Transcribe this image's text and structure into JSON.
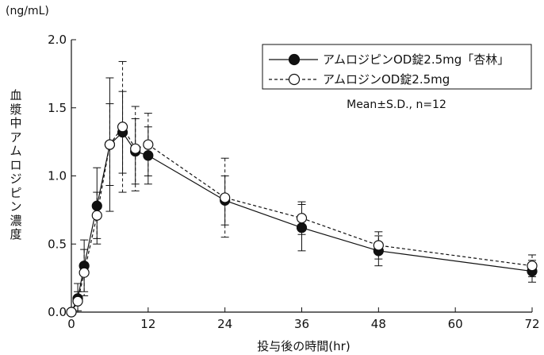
{
  "chart_data": {
    "type": "line",
    "unit_label": "(ng/mL)",
    "ylabel": "血漿中アムロジピン濃度",
    "xlabel": "投与後の時間(hr)",
    "ylim": [
      0,
      2.0
    ],
    "xlim": [
      0,
      72
    ],
    "y_ticks": [
      "0.0",
      "0.5",
      "1.0",
      "1.5",
      "2.0"
    ],
    "x_ticks": [
      "0",
      "12",
      "24",
      "36",
      "48",
      "60",
      "72"
    ],
    "legend_position": "top-right",
    "annotation": "Mean±S.D., n=12",
    "series": [
      {
        "name": "アムロジピンOD錠2.5mg「杏林」",
        "marker": "filled-circle",
        "line": "solid",
        "color": "#111111",
        "x": [
          0,
          1,
          2,
          4,
          6,
          8,
          10,
          12,
          24,
          36,
          48,
          72
        ],
        "y": [
          0.0,
          0.1,
          0.34,
          0.78,
          1.23,
          1.32,
          1.18,
          1.15,
          0.82,
          0.62,
          0.45,
          0.3
        ],
        "sd": [
          0,
          0.11,
          0.19,
          0.28,
          0.49,
          0.3,
          0.24,
          0.21,
          0.18,
          0.17,
          0.11,
          0.08
        ]
      },
      {
        "name": "アムロジンOD錠2.5mg",
        "marker": "open-circle",
        "line": "dashed",
        "color": "#111111",
        "x": [
          0,
          1,
          2,
          4,
          6,
          8,
          10,
          12,
          24,
          36,
          48,
          72
        ],
        "y": [
          0.0,
          0.08,
          0.29,
          0.71,
          1.23,
          1.36,
          1.2,
          1.23,
          0.84,
          0.69,
          0.49,
          0.34
        ],
        "sd": [
          0,
          0.07,
          0.17,
          0.17,
          0.3,
          0.48,
          0.31,
          0.23,
          0.29,
          0.12,
          0.1,
          0.08
        ]
      }
    ]
  }
}
